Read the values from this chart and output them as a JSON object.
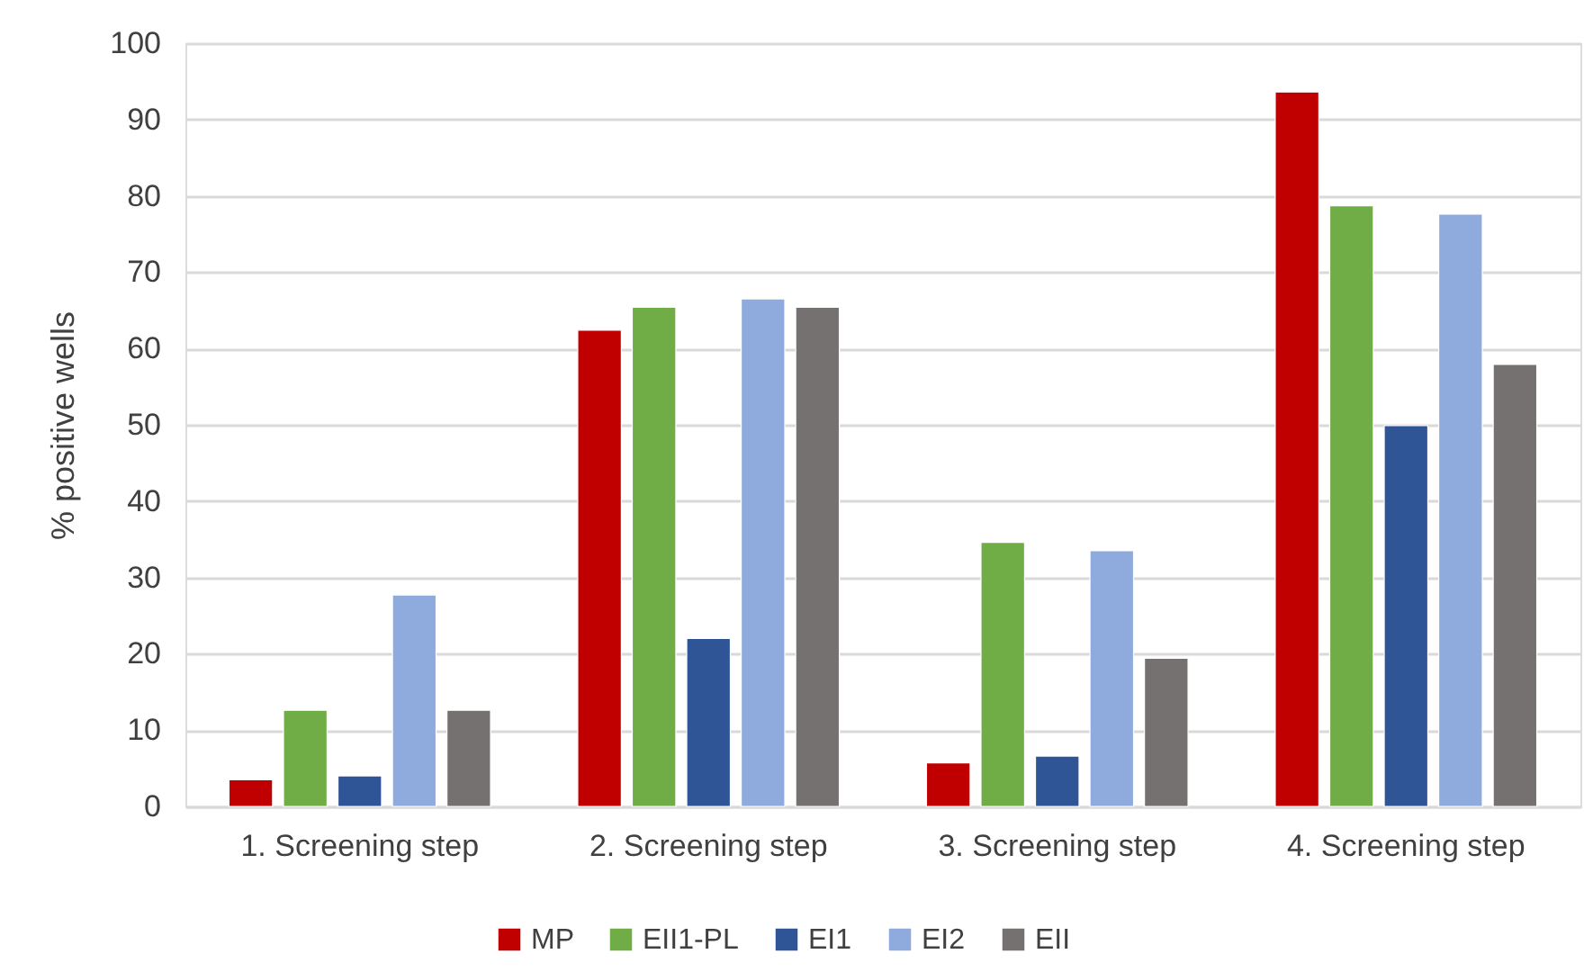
{
  "chart_data": {
    "type": "bar",
    "ylabel": "% positive wells",
    "categories": [
      "1. Screening step",
      "2. Screening step",
      "3. Screening step",
      "4. Screening step"
    ],
    "series": [
      {
        "name": "MP",
        "color": "#c00000",
        "values": [
          3.5,
          62.4,
          5.7,
          93.6
        ]
      },
      {
        "name": "EII1-PL",
        "color": "#70ad47",
        "values": [
          12.6,
          65.4,
          34.6,
          78.7
        ]
      },
      {
        "name": "EI1",
        "color": "#2f5597",
        "values": [
          4.0,
          22.0,
          6.6,
          49.9
        ]
      },
      {
        "name": "EI2",
        "color": "#8faadc",
        "values": [
          27.7,
          66.5,
          33.5,
          77.6
        ]
      },
      {
        "name": "EII",
        "color": "#767171",
        "values": [
          12.6,
          65.4,
          19.4,
          57.9
        ]
      }
    ],
    "ylim": [
      0,
      100
    ],
    "yticks": [
      0,
      10,
      20,
      30,
      40,
      50,
      60,
      70,
      80,
      90,
      100
    ],
    "grid": "y",
    "legend": "bottom"
  }
}
